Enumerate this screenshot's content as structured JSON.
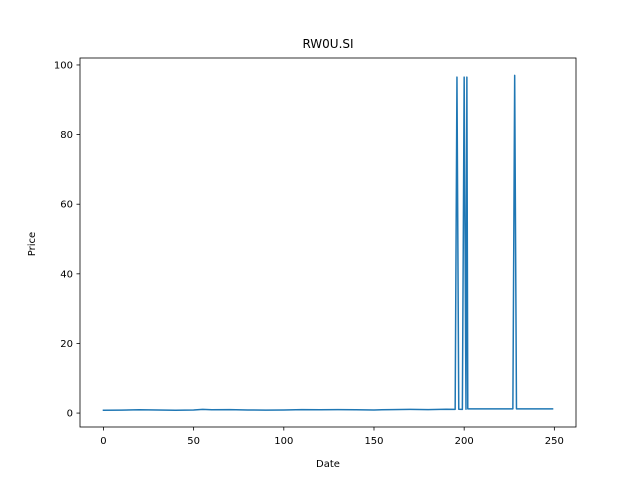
{
  "chart_data": {
    "type": "line",
    "title": "RW0U.SI",
    "xlabel": "Date",
    "ylabel": "Price",
    "xlim": [
      -13,
      262
    ],
    "ylim": [
      -4,
      102
    ],
    "x_ticks": [
      0,
      50,
      100,
      150,
      200,
      250
    ],
    "y_ticks": [
      0,
      20,
      40,
      60,
      80,
      100
    ],
    "grid": false,
    "series": [
      {
        "color": "#1f77b4",
        "points": [
          [
            0,
            0.8
          ],
          [
            10,
            0.85
          ],
          [
            20,
            0.95
          ],
          [
            30,
            0.9
          ],
          [
            40,
            0.8
          ],
          [
            50,
            0.9
          ],
          [
            55,
            1.05
          ],
          [
            60,
            0.95
          ],
          [
            70,
            1.0
          ],
          [
            80,
            0.9
          ],
          [
            90,
            0.85
          ],
          [
            100,
            0.9
          ],
          [
            110,
            1.0
          ],
          [
            120,
            0.95
          ],
          [
            130,
            1.0
          ],
          [
            140,
            0.95
          ],
          [
            150,
            0.9
          ],
          [
            160,
            1.0
          ],
          [
            170,
            1.05
          ],
          [
            180,
            1.0
          ],
          [
            190,
            1.1
          ],
          [
            195,
            1.05
          ],
          [
            196,
            96.5
          ],
          [
            197,
            1.1
          ],
          [
            199,
            1.05
          ],
          [
            200,
            96.5
          ],
          [
            201,
            1.1
          ],
          [
            201.5,
            96.5
          ],
          [
            202,
            1.2
          ],
          [
            210,
            1.2
          ],
          [
            220,
            1.2
          ],
          [
            227,
            1.2
          ],
          [
            228,
            97.0
          ],
          [
            229,
            1.2
          ],
          [
            235,
            1.2
          ],
          [
            240,
            1.2
          ],
          [
            249,
            1.2
          ]
        ]
      }
    ]
  }
}
